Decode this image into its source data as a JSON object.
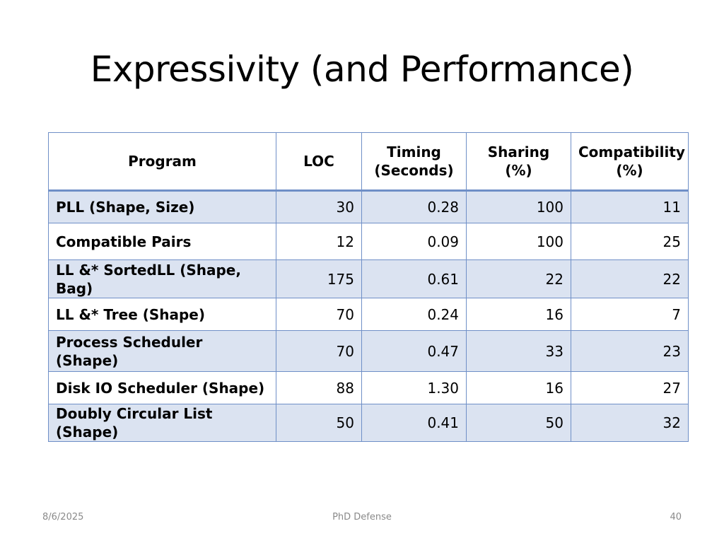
{
  "slide": {
    "title": "Expressivity (and Performance)"
  },
  "table": {
    "headers": [
      "Program",
      "LOC",
      "Timing\n(Seconds)",
      "Sharing (%)",
      "Compatibility\n(%)"
    ],
    "rows": [
      [
        "PLL (Shape, Size)",
        "30",
        "0.28",
        "100",
        "11"
      ],
      [
        "Compatible Pairs",
        "12",
        "0.09",
        "100",
        "25"
      ],
      [
        "LL &* SortedLL (Shape, Bag)",
        "175",
        "0.61",
        "22",
        "22"
      ],
      [
        "LL &* Tree (Shape)",
        "70",
        "0.24",
        "16",
        "7"
      ],
      [
        "Process Scheduler (Shape)",
        "70",
        "0.47",
        "33",
        "23"
      ],
      [
        "Disk IO Scheduler (Shape)",
        "88",
        "1.30",
        "16",
        "27"
      ],
      [
        "Doubly Circular List (Shape)",
        "50",
        "0.41",
        "50",
        "32"
      ]
    ]
  },
  "footer": {
    "date": "8/6/2025",
    "center": "PhD Defense",
    "page": "40"
  },
  "colors": {
    "table_border": "#6f8fc7",
    "band_fill": "#dbe3f1",
    "footer_text": "#8a8a8a"
  }
}
